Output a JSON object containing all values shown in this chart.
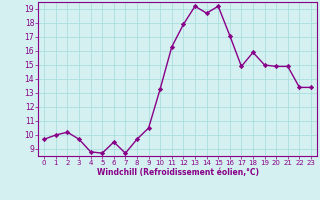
{
  "x": [
    0,
    1,
    2,
    3,
    4,
    5,
    6,
    7,
    8,
    9,
    10,
    11,
    12,
    13,
    14,
    15,
    16,
    17,
    18,
    19,
    20,
    21,
    22,
    23
  ],
  "y": [
    9.7,
    10.0,
    10.2,
    9.7,
    8.8,
    8.7,
    9.5,
    8.7,
    9.7,
    10.5,
    13.3,
    16.3,
    17.9,
    19.2,
    18.7,
    19.2,
    17.1,
    14.9,
    15.9,
    15.0,
    14.9,
    14.9,
    13.4,
    13.4
  ],
  "line_color": "#880088",
  "marker": "D",
  "marker_size": 2.2,
  "xlabel": "Windchill (Refroidissement éolien,°C)",
  "xlim": [
    -0.5,
    23.5
  ],
  "ylim": [
    8.5,
    19.5
  ],
  "yticks": [
    9,
    10,
    11,
    12,
    13,
    14,
    15,
    16,
    17,
    18,
    19
  ],
  "xticks": [
    0,
    1,
    2,
    3,
    4,
    5,
    6,
    7,
    8,
    9,
    10,
    11,
    12,
    13,
    14,
    15,
    16,
    17,
    18,
    19,
    20,
    21,
    22,
    23
  ],
  "bg_color": "#d4f0f0",
  "grid_color": "#aadddd",
  "tick_color": "#880088",
  "label_color": "#880088",
  "linewidth": 1.0,
  "spine_color": "#880088"
}
